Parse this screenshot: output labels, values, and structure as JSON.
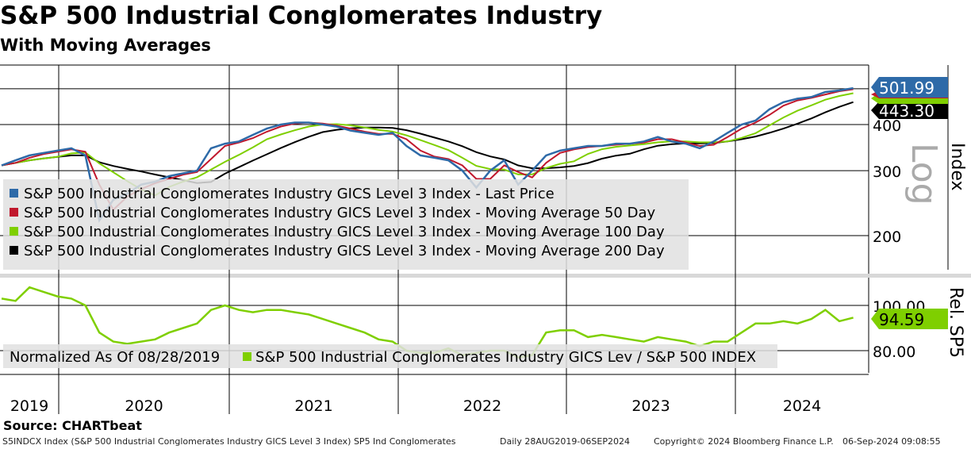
{
  "title": "S&P 500 Industrial Conglomerates Industry",
  "subtitle": "With Moving Averages",
  "source": "Source: CHARTbeat",
  "footer": {
    "ticker": "S5INDCX Index (S&P 500 Industrial Conglomerates Industry GICS Level 3 Index) SP5 Ind Conglomerates",
    "range": "Daily 28AUG2019-06SEP2024",
    "copyright": "Copyright© 2024 Bloomberg Finance L.P.",
    "timestamp": "06-Sep-2024 09:08:55"
  },
  "colors": {
    "price": "#2e6aa8",
    "ma50": "#c0182d",
    "ma100": "#7fcf00",
    "ma200": "#000000",
    "rel": "#7fcf00"
  },
  "chart_data": [
    {
      "type": "line",
      "title": "S&P 500 Industrial Conglomerates Industry",
      "scale": "log",
      "ylabel": "Index",
      "scale_label": "Log",
      "ylim": [
        170,
        540
      ],
      "yticks": [
        "200",
        "300",
        "400"
      ],
      "ytick_values": [
        200,
        300,
        400
      ],
      "xticks": [
        "2019",
        "2020",
        "2021",
        "2022",
        "2023",
        "2024"
      ],
      "x_start": "2019-08",
      "x_step": "month",
      "last_labels": {
        "price": "501.99",
        "ma200": "443.30"
      },
      "legend": [
        "S&P 500 Industrial Conglomerates Industry GICS Level 3 Index - Last Price",
        "S&P 500 Industrial Conglomerates Industry GICS Level 3 Index - Moving Average 50 Day",
        "S&P 500 Industrial Conglomerates Industry GICS Level 3 Index - Moving Average 100 Day",
        "S&P 500 Industrial Conglomerates Industry GICS Level 3 Index - Moving Average 200 Day"
      ],
      "price": [
        310,
        320,
        330,
        335,
        340,
        345,
        330,
        220,
        250,
        260,
        275,
        280,
        290,
        295,
        300,
        345,
        355,
        360,
        375,
        390,
        400,
        405,
        405,
        400,
        395,
        385,
        380,
        375,
        380,
        350,
        330,
        325,
        320,
        300,
        270,
        300,
        320,
        275,
        300,
        330,
        340,
        345,
        350,
        350,
        355,
        355,
        360,
        370,
        360,
        355,
        345,
        360,
        380,
        400,
        410,
        440,
        460,
        470,
        475,
        490,
        495,
        502
      ],
      "ma_windows_months": {
        "ma50": 2,
        "ma100": 5,
        "ma200": 9
      }
    },
    {
      "type": "line",
      "ylabel": "Rel. SP5",
      "ylim": [
        72,
        112
      ],
      "yticks": [
        "100.00",
        "80.00"
      ],
      "ytick_values": [
        100,
        80
      ],
      "legend": [
        "Normalized As Of 08/28/2019",
        "S&P 500 Industrial Conglomerates Industry GICS Lev / S&P 500 INDEX"
      ],
      "last_label": "94.59",
      "values": [
        103,
        102,
        108,
        106,
        104,
        103,
        100,
        88,
        84,
        83,
        84,
        85,
        88,
        90,
        92,
        98,
        100,
        98,
        97,
        98,
        98,
        97,
        96,
        94,
        92,
        90,
        88,
        85,
        84,
        80,
        79,
        79,
        81,
        78,
        79,
        80,
        80,
        77,
        78,
        88,
        89,
        89,
        86,
        87,
        86,
        85,
        84,
        86,
        85,
        84,
        82,
        84,
        84,
        88,
        92,
        92,
        93,
        92,
        94,
        98,
        93,
        94.59
      ]
    }
  ]
}
